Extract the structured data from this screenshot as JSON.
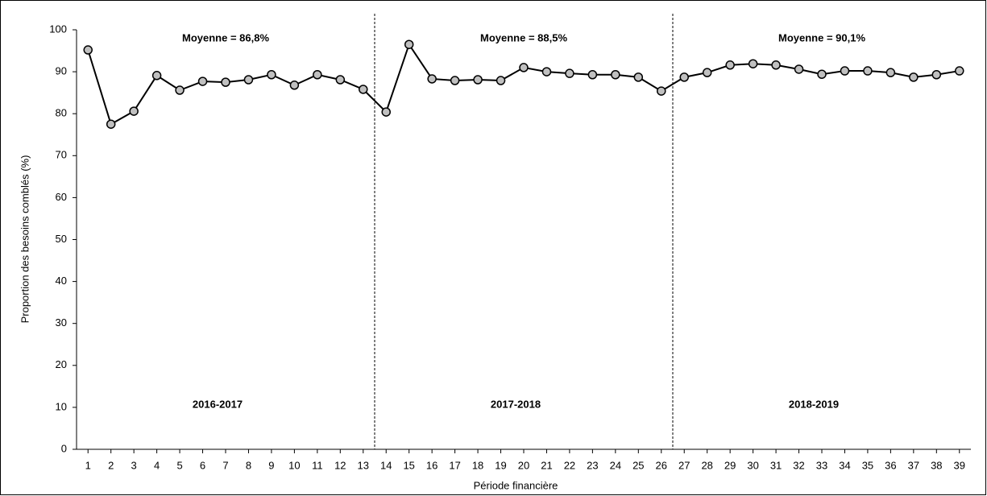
{
  "chart_data": {
    "type": "line",
    "x": [
      1,
      2,
      3,
      4,
      5,
      6,
      7,
      8,
      9,
      10,
      11,
      12,
      13,
      14,
      15,
      16,
      17,
      18,
      19,
      20,
      21,
      22,
      23,
      24,
      25,
      26,
      27,
      28,
      29,
      30,
      31,
      32,
      33,
      34,
      35,
      36,
      37,
      38,
      39
    ],
    "series": [
      {
        "name": "Proportion des besoins comblés",
        "color": "#000000",
        "marker_color": "#c0c0c0",
        "values": [
          95.2,
          77.5,
          80.6,
          89.1,
          85.6,
          87.7,
          87.5,
          88.1,
          89.3,
          86.8,
          89.3,
          88.1,
          85.8,
          80.4,
          96.5,
          88.3,
          87.9,
          88.1,
          87.9,
          91.0,
          90.0,
          89.6,
          89.3,
          89.3,
          88.7,
          85.4,
          88.7,
          89.8,
          91.6,
          91.9,
          91.6,
          90.6,
          89.4,
          90.2,
          90.2,
          89.8,
          88.7,
          89.3,
          90.2
        ]
      }
    ],
    "xlabel": "Période financière",
    "ylabel": "Proportion des besoins comblés (%)",
    "xlim": [
      0.5,
      39.5
    ],
    "xticks": [
      1,
      2,
      3,
      4,
      5,
      6,
      7,
      8,
      9,
      10,
      11,
      12,
      13,
      14,
      15,
      16,
      17,
      18,
      19,
      20,
      21,
      22,
      23,
      24,
      25,
      26,
      27,
      28,
      29,
      30,
      31,
      32,
      33,
      34,
      35,
      36,
      37,
      38,
      39
    ],
    "ylim": [
      0,
      100
    ],
    "yticks": [
      0,
      10,
      20,
      30,
      40,
      50,
      60,
      70,
      80,
      90,
      100
    ],
    "grid": false,
    "dividers": [
      13.5,
      26.5
    ],
    "periods": [
      {
        "label": "2016-2017",
        "mean": "Moyenne = 86,8%"
      },
      {
        "label": "2017-2018",
        "mean": "Moyenne = 88,5%"
      },
      {
        "label": "2018-2019",
        "mean": "Moyenne = 90,1%"
      }
    ]
  }
}
